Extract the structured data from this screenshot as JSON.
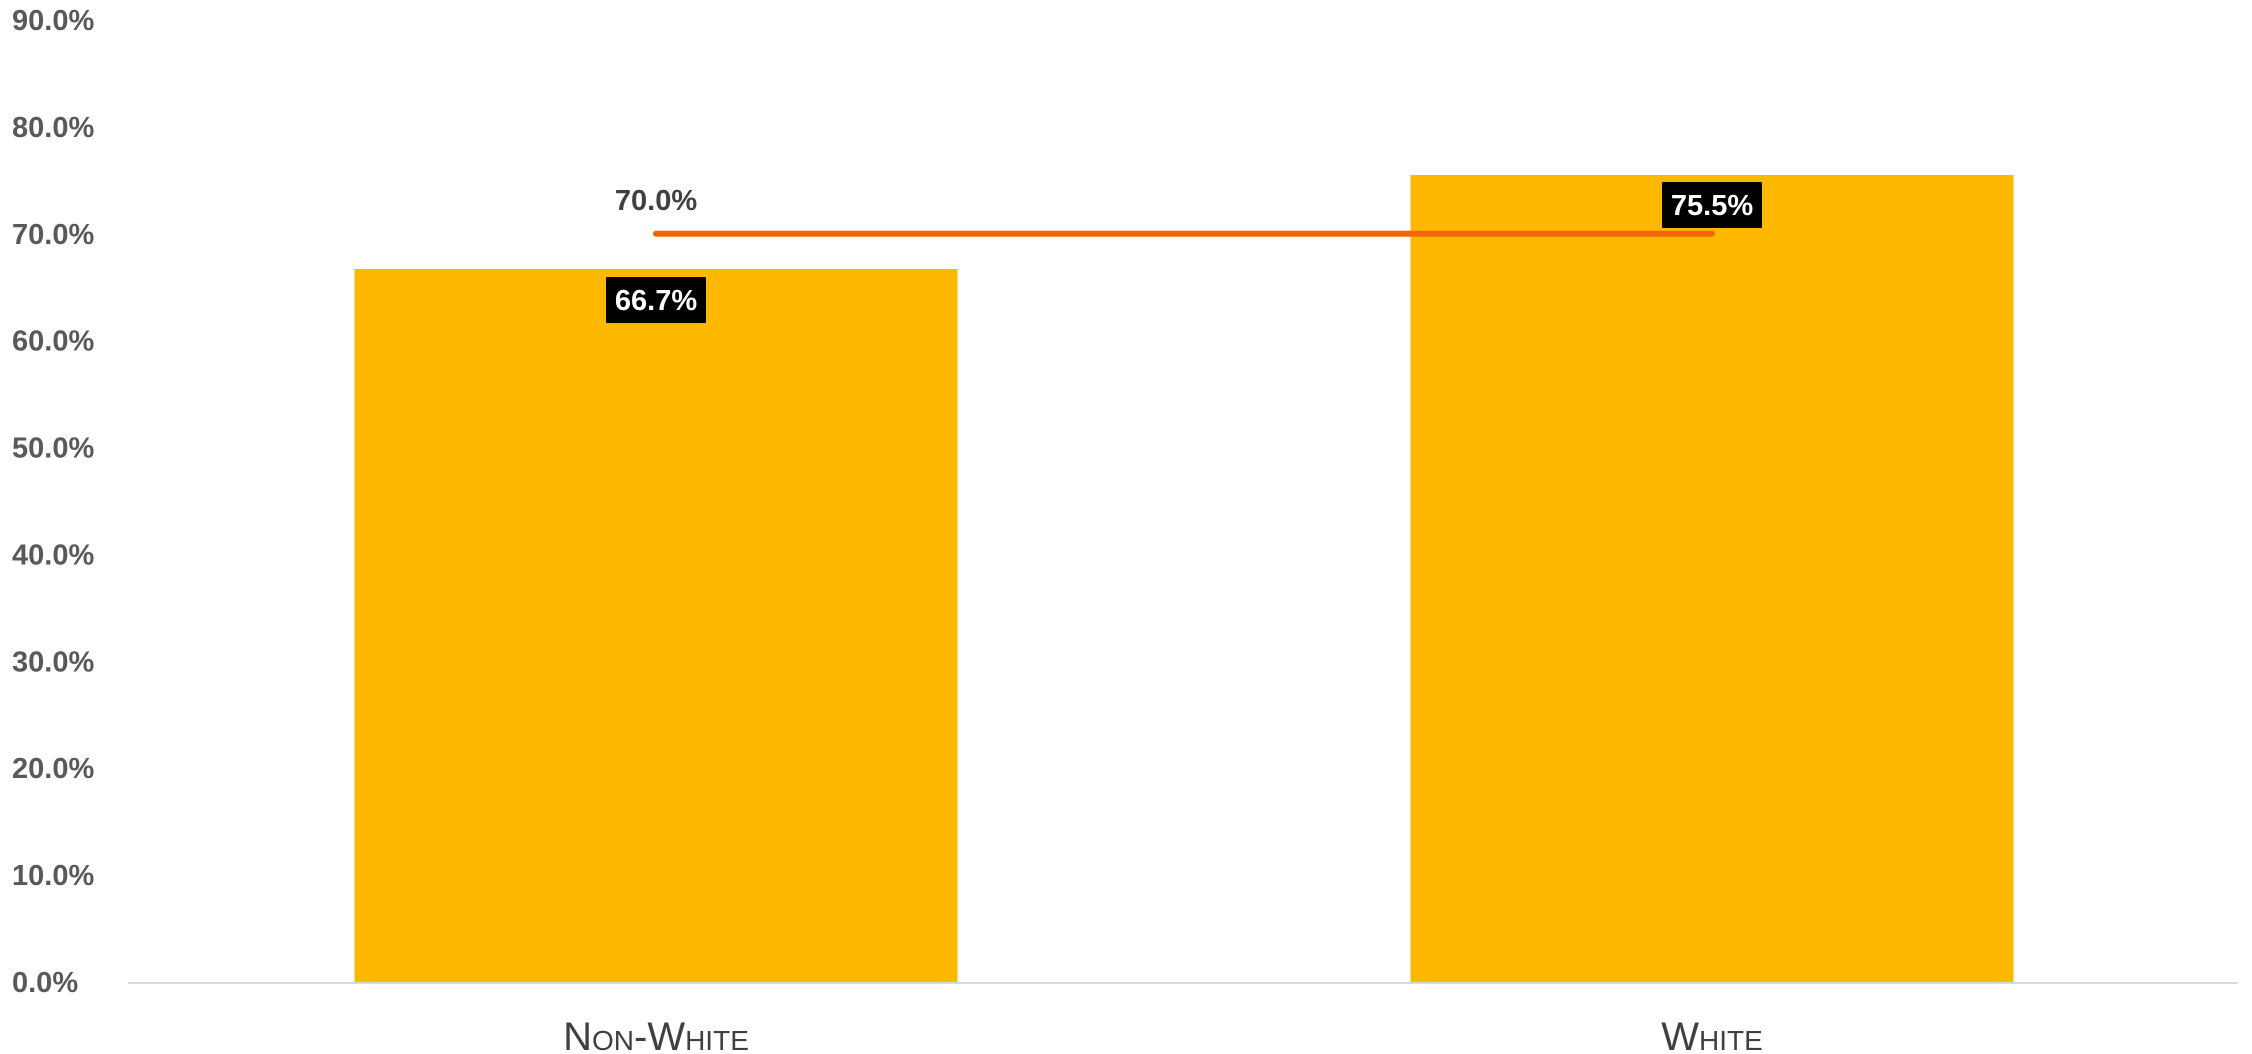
{
  "chart_data": {
    "type": "bar",
    "categories": [
      "Non-White",
      "White"
    ],
    "series": [
      {
        "values": [
          66.7,
          75.5
        ],
        "data_labels": [
          "66.7%",
          "75.5%"
        ]
      }
    ],
    "target_line": {
      "value": 70.0,
      "label": "70.0%"
    },
    "yticks": [
      "0.0%",
      "10.0%",
      "20.0%",
      "30.0%",
      "40.0%",
      "50.0%",
      "60.0%",
      "70.0%",
      "80.0%",
      "90.0%"
    ],
    "ylim": [
      0,
      90
    ],
    "title": "",
    "xlabel": "",
    "ylabel": "",
    "grid": false,
    "legend": "none",
    "colors": {
      "bar": "#FFB800",
      "target_line": "#F2650A",
      "label_box": "#000000",
      "axis_line": "#D9D9D9",
      "tick_text": "#595959"
    }
  }
}
